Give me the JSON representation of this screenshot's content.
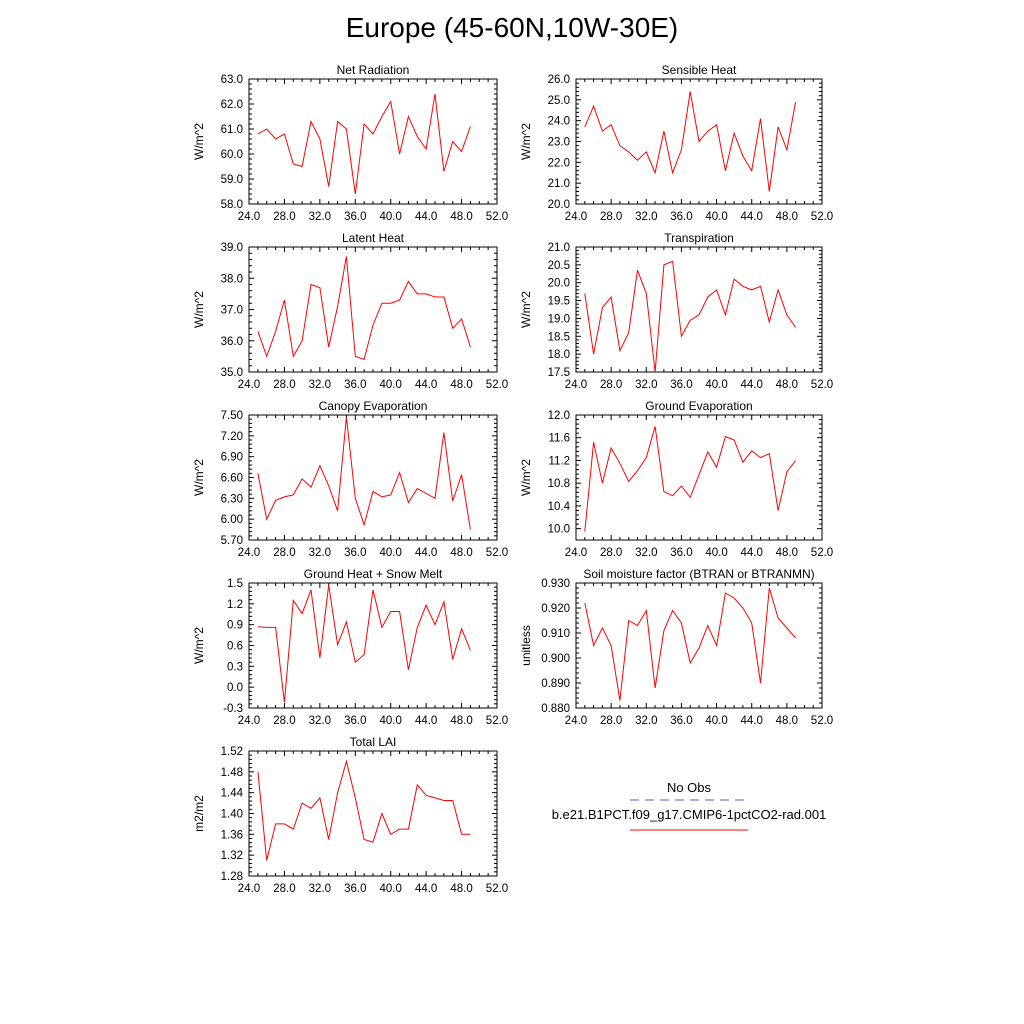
{
  "figure": {
    "title": "Europe (45-60N,10W-30E)",
    "legend": {
      "obs_label": "No Obs",
      "obs_color": "#5555cc",
      "model_label": "b.e21.B1PCT.f09_g17.CMIP6-1pctCO2-rad.001",
      "model_color": "#ff0000"
    }
  },
  "chart_data": [
    {
      "type": "line",
      "title": "Net Radiation",
      "ylabel": "W/m^2",
      "xlim": [
        24,
        52
      ],
      "ylim": [
        58,
        63
      ],
      "xticks": [
        "24.0",
        "28.0",
        "32.0",
        "36.0",
        "40.0",
        "44.0",
        "48.0",
        "52.0"
      ],
      "yticks": [
        "58.0",
        "59.0",
        "60.0",
        "61.0",
        "62.0",
        "63.0"
      ],
      "series": [
        {
          "color": "#ff0000",
          "x": [
            25,
            26,
            27,
            28,
            29,
            30,
            31,
            32,
            33,
            34,
            35,
            36,
            37,
            38,
            39,
            40,
            41,
            42,
            43,
            44,
            45,
            46,
            47,
            48,
            49
          ],
          "y": [
            60.8,
            61.0,
            60.6,
            60.8,
            59.6,
            59.5,
            61.3,
            60.6,
            58.7,
            61.3,
            61.0,
            58.4,
            61.2,
            60.8,
            61.5,
            62.1,
            60.0,
            61.5,
            60.7,
            60.2,
            62.4,
            59.3,
            60.5,
            60.1,
            61.1
          ]
        }
      ]
    },
    {
      "type": "line",
      "title": "Sensible Heat",
      "ylabel": "W/m^2",
      "xlim": [
        24,
        52
      ],
      "ylim": [
        20,
        26
      ],
      "xticks": [
        "24.0",
        "28.0",
        "32.0",
        "36.0",
        "40.0",
        "44.0",
        "48.0",
        "52.0"
      ],
      "yticks": [
        "20.0",
        "21.0",
        "22.0",
        "23.0",
        "24.0",
        "25.0",
        "26.0"
      ],
      "series": [
        {
          "color": "#ff0000",
          "x": [
            25,
            26,
            27,
            28,
            29,
            30,
            31,
            32,
            33,
            34,
            35,
            36,
            37,
            38,
            39,
            40,
            41,
            42,
            43,
            44,
            45,
            46,
            47,
            48,
            49
          ],
          "y": [
            23.7,
            24.7,
            23.5,
            23.8,
            22.8,
            22.5,
            22.1,
            22.5,
            21.5,
            23.5,
            21.5,
            22.6,
            25.4,
            23.0,
            23.5,
            23.8,
            21.6,
            23.4,
            22.3,
            21.6,
            24.1,
            20.6,
            23.7,
            22.6,
            24.9
          ]
        }
      ]
    },
    {
      "type": "line",
      "title": "Latent Heat",
      "ylabel": "W/m^2",
      "xlim": [
        24,
        52
      ],
      "ylim": [
        35,
        39
      ],
      "xticks": [
        "24.0",
        "28.0",
        "32.0",
        "36.0",
        "40.0",
        "44.0",
        "48.0",
        "52.0"
      ],
      "yticks": [
        "35.0",
        "36.0",
        "37.0",
        "38.0",
        "39.0"
      ],
      "series": [
        {
          "color": "#ff0000",
          "x": [
            25,
            26,
            27,
            28,
            29,
            30,
            31,
            32,
            33,
            34,
            35,
            36,
            37,
            38,
            39,
            40,
            41,
            42,
            43,
            44,
            45,
            46,
            47,
            48,
            49
          ],
          "y": [
            36.3,
            35.5,
            36.3,
            37.3,
            35.5,
            36.0,
            37.8,
            37.7,
            35.8,
            37.1,
            38.7,
            35.5,
            35.4,
            36.5,
            37.2,
            37.2,
            37.3,
            37.9,
            37.5,
            37.5,
            37.4,
            37.4,
            36.4,
            36.7,
            35.8
          ]
        }
      ]
    },
    {
      "type": "line",
      "title": "Transpiration",
      "ylabel": "W/m^2",
      "xlim": [
        24,
        52
      ],
      "ylim": [
        17.5,
        21.0
      ],
      "xticks": [
        "24.0",
        "28.0",
        "32.0",
        "36.0",
        "40.0",
        "44.0",
        "48.0",
        "52.0"
      ],
      "yticks": [
        "17.5",
        "18.0",
        "18.5",
        "19.0",
        "19.5",
        "20.0",
        "20.5",
        "21.0"
      ],
      "series": [
        {
          "color": "#ff0000",
          "x": [
            25,
            26,
            27,
            28,
            29,
            30,
            31,
            32,
            33,
            34,
            35,
            36,
            37,
            38,
            39,
            40,
            41,
            42,
            43,
            44,
            45,
            46,
            47,
            48,
            49
          ],
          "y": [
            19.7,
            18.0,
            19.3,
            19.6,
            18.1,
            18.6,
            20.35,
            19.7,
            17.5,
            20.5,
            20.6,
            18.5,
            18.95,
            19.1,
            19.6,
            19.8,
            19.1,
            20.1,
            19.9,
            19.8,
            19.9,
            18.9,
            19.8,
            19.1,
            18.75
          ]
        }
      ]
    },
    {
      "type": "line",
      "title": "Canopy Evaporation",
      "ylabel": "W/m^2",
      "xlim": [
        24,
        52
      ],
      "ylim": [
        5.7,
        7.5
      ],
      "xticks": [
        "24.0",
        "28.0",
        "32.0",
        "36.0",
        "40.0",
        "44.0",
        "48.0",
        "52.0"
      ],
      "yticks": [
        "5.70",
        "6.00",
        "6.30",
        "6.60",
        "6.90",
        "7.20",
        "7.50"
      ],
      "series": [
        {
          "color": "#ff0000",
          "x": [
            25,
            26,
            27,
            28,
            29,
            30,
            31,
            32,
            33,
            34,
            35,
            36,
            37,
            38,
            39,
            40,
            41,
            42,
            43,
            44,
            45,
            46,
            47,
            48,
            49
          ],
          "y": [
            6.66,
            6.0,
            6.27,
            6.32,
            6.35,
            6.58,
            6.46,
            6.77,
            6.48,
            6.12,
            7.47,
            6.3,
            5.92,
            6.4,
            6.32,
            6.35,
            6.67,
            6.24,
            6.44,
            6.37,
            6.3,
            7.25,
            6.26,
            6.64,
            5.85
          ]
        }
      ]
    },
    {
      "type": "line",
      "title": "Ground Evaporation",
      "ylabel": "W/m^2",
      "xlim": [
        24,
        52
      ],
      "ylim": [
        9.8,
        12.0
      ],
      "xticks": [
        "24.0",
        "28.0",
        "32.0",
        "36.0",
        "40.0",
        "44.0",
        "48.0",
        "52.0"
      ],
      "yticks": [
        "10.0",
        "10.4",
        "10.8",
        "11.2",
        "11.6",
        "12.0"
      ],
      "series": [
        {
          "color": "#ff0000",
          "x": [
            25,
            26,
            27,
            28,
            29,
            30,
            31,
            32,
            33,
            34,
            35,
            36,
            37,
            38,
            39,
            40,
            41,
            42,
            43,
            44,
            45,
            46,
            47,
            48,
            49
          ],
          "y": [
            9.95,
            11.52,
            10.8,
            11.42,
            11.15,
            10.83,
            11.02,
            11.25,
            11.8,
            10.65,
            10.58,
            10.75,
            10.55,
            10.95,
            11.35,
            11.08,
            11.62,
            11.56,
            11.17,
            11.37,
            11.25,
            11.32,
            10.32,
            11.0,
            11.2
          ]
        }
      ]
    },
    {
      "type": "line",
      "title": "Ground Heat + Snow Melt",
      "ylabel": "W/m^2",
      "xlim": [
        24,
        52
      ],
      "ylim": [
        -0.3,
        1.5
      ],
      "xticks": [
        "24.0",
        "28.0",
        "32.0",
        "36.0",
        "40.0",
        "44.0",
        "48.0",
        "52.0"
      ],
      "yticks": [
        "-0.3",
        "0.0",
        "0.3",
        "0.6",
        "0.9",
        "1.2",
        "1.5"
      ],
      "series": [
        {
          "color": "#ff0000",
          "x": [
            25,
            26,
            27,
            28,
            29,
            30,
            31,
            32,
            33,
            34,
            35,
            36,
            37,
            38,
            39,
            40,
            41,
            42,
            43,
            44,
            45,
            46,
            47,
            48,
            49
          ],
          "y": [
            0.87,
            0.86,
            0.86,
            -0.22,
            1.25,
            1.06,
            1.4,
            0.42,
            1.47,
            0.61,
            0.94,
            0.36,
            0.47,
            1.4,
            0.86,
            1.09,
            1.09,
            0.25,
            0.86,
            1.18,
            0.9,
            1.23,
            0.4,
            0.84,
            0.53
          ]
        }
      ]
    },
    {
      "type": "line",
      "title": "Soil moisture factor (BTRAN or BTRANMN)",
      "ylabel": "unitless",
      "xlim": [
        24,
        52
      ],
      "ylim": [
        0.88,
        0.93
      ],
      "xticks": [
        "24.0",
        "28.0",
        "32.0",
        "36.0",
        "40.0",
        "44.0",
        "48.0",
        "52.0"
      ],
      "yticks": [
        "0.880",
        "0.890",
        "0.900",
        "0.910",
        "0.920",
        "0.930"
      ],
      "series": [
        {
          "color": "#ff0000",
          "x": [
            25,
            26,
            27,
            28,
            29,
            30,
            31,
            32,
            33,
            34,
            35,
            36,
            37,
            38,
            39,
            40,
            41,
            42,
            43,
            44,
            45,
            46,
            47,
            48,
            49
          ],
          "y": [
            0.922,
            0.905,
            0.912,
            0.905,
            0.883,
            0.915,
            0.913,
            0.919,
            0.888,
            0.911,
            0.919,
            0.914,
            0.898,
            0.904,
            0.913,
            0.905,
            0.926,
            0.924,
            0.92,
            0.914,
            0.89,
            0.928,
            0.916,
            0.912,
            0.908
          ]
        }
      ]
    },
    {
      "type": "line",
      "title": "Total LAI",
      "ylabel": "m2/m2",
      "xlim": [
        24,
        52
      ],
      "ylim": [
        1.28,
        1.52
      ],
      "xticks": [
        "24.0",
        "28.0",
        "32.0",
        "36.0",
        "40.0",
        "44.0",
        "48.0",
        "52.0"
      ],
      "yticks": [
        "1.28",
        "1.32",
        "1.36",
        "1.40",
        "1.44",
        "1.48",
        "1.52"
      ],
      "series": [
        {
          "color": "#ff0000",
          "x": [
            25,
            26,
            27,
            28,
            29,
            30,
            31,
            32,
            33,
            34,
            35,
            36,
            37,
            38,
            39,
            40,
            41,
            42,
            43,
            44,
            45,
            46,
            47,
            48,
            49
          ],
          "y": [
            1.48,
            1.31,
            1.38,
            1.38,
            1.37,
            1.42,
            1.41,
            1.43,
            1.35,
            1.44,
            1.5,
            1.43,
            1.35,
            1.345,
            1.4,
            1.36,
            1.37,
            1.37,
            1.455,
            1.435,
            1.43,
            1.425,
            1.425,
            1.36,
            1.36
          ]
        }
      ]
    }
  ]
}
